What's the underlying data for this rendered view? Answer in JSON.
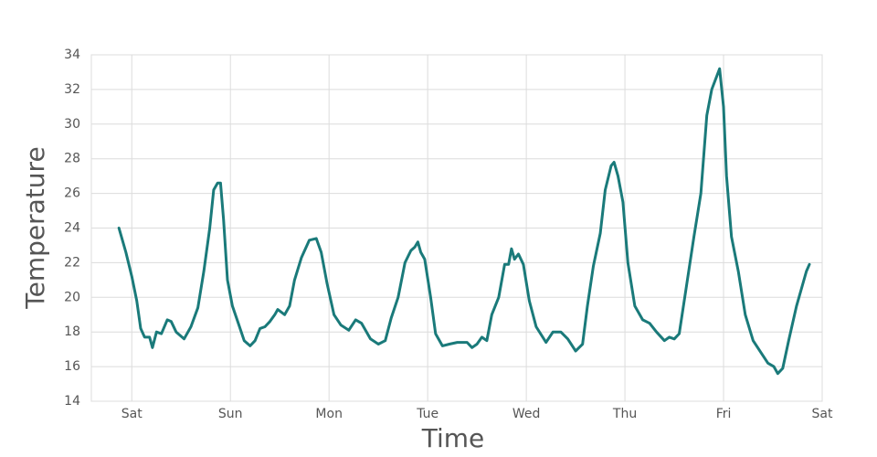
{
  "chart_data": {
    "type": "line",
    "x_label": "Time",
    "y_label": "Temperature",
    "color": "#1a7a7a",
    "grid": true,
    "xlim": [
      -0.41,
      7
    ],
    "ylim": [
      14,
      34
    ],
    "xticks": [
      {
        "value": 0,
        "label": "Sat"
      },
      {
        "value": 1,
        "label": "Sun"
      },
      {
        "value": 2,
        "label": "Mon"
      },
      {
        "value": 3,
        "label": "Tue"
      },
      {
        "value": 4,
        "label": "Wed"
      },
      {
        "value": 5,
        "label": "Thu"
      },
      {
        "value": 6,
        "label": "Fri"
      },
      {
        "value": 7,
        "label": "Sat"
      }
    ],
    "yticks": [
      14,
      16,
      18,
      20,
      22,
      24,
      26,
      28,
      30,
      32,
      34
    ],
    "x": [
      -0.13,
      -0.06,
      0.0,
      0.05,
      0.09,
      0.13,
      0.18,
      0.21,
      0.25,
      0.3,
      0.36,
      0.4,
      0.45,
      0.53,
      0.6,
      0.67,
      0.73,
      0.79,
      0.83,
      0.87,
      0.9,
      0.93,
      0.97,
      1.02,
      1.08,
      1.14,
      1.2,
      1.25,
      1.3,
      1.35,
      1.4,
      1.45,
      1.48,
      1.55,
      1.6,
      1.65,
      1.72,
      1.8,
      1.87,
      1.92,
      1.98,
      2.05,
      2.12,
      2.2,
      2.27,
      2.33,
      2.42,
      2.5,
      2.57,
      2.63,
      2.7,
      2.77,
      2.83,
      2.87,
      2.9,
      2.93,
      2.97,
      3.03,
      3.08,
      3.15,
      3.22,
      3.3,
      3.4,
      3.45,
      3.5,
      3.55,
      3.6,
      3.65,
      3.72,
      3.78,
      3.82,
      3.85,
      3.88,
      3.92,
      3.97,
      4.03,
      4.1,
      4.2,
      4.27,
      4.35,
      4.42,
      4.5,
      4.57,
      4.62,
      4.68,
      4.75,
      4.8,
      4.86,
      4.89,
      4.93,
      4.98,
      5.03,
      5.1,
      5.18,
      5.25,
      5.32,
      5.4,
      5.45,
      5.5,
      5.55,
      5.62,
      5.7,
      5.77,
      5.83,
      5.88,
      5.96,
      6.0,
      6.03,
      6.08,
      6.15,
      6.22,
      6.3,
      6.38,
      6.45,
      6.51,
      6.55,
      6.6,
      6.66,
      6.74,
      6.8,
      6.84,
      6.87
    ],
    "values": [
      24.0,
      22.6,
      21.2,
      19.8,
      18.2,
      17.7,
      17.7,
      17.1,
      18.0,
      17.9,
      18.7,
      18.6,
      18.0,
      17.6,
      18.3,
      19.4,
      21.5,
      24.0,
      26.2,
      26.6,
      26.6,
      24.5,
      21.0,
      19.5,
      18.5,
      17.5,
      17.2,
      17.5,
      18.2,
      18.3,
      18.6,
      19.0,
      19.3,
      19.0,
      19.5,
      21.0,
      22.3,
      23.3,
      23.4,
      22.6,
      20.8,
      19.0,
      18.4,
      18.1,
      18.7,
      18.5,
      17.6,
      17.3,
      17.5,
      18.8,
      20.0,
      22.0,
      22.7,
      22.9,
      23.2,
      22.6,
      22.2,
      20.0,
      17.9,
      17.2,
      17.3,
      17.4,
      17.4,
      17.1,
      17.3,
      17.7,
      17.5,
      19.0,
      20.0,
      21.9,
      21.9,
      22.8,
      22.2,
      22.5,
      21.9,
      19.8,
      18.3,
      17.4,
      18.0,
      18.0,
      17.6,
      16.9,
      17.3,
      19.5,
      21.8,
      23.7,
      26.2,
      27.6,
      27.8,
      27.0,
      25.5,
      22.0,
      19.5,
      18.7,
      18.5,
      18.0,
      17.5,
      17.7,
      17.6,
      17.9,
      20.5,
      23.5,
      26.0,
      30.5,
      32.0,
      33.2,
      31.0,
      27.0,
      23.5,
      21.5,
      19.0,
      17.5,
      16.8,
      16.2,
      16.0,
      15.6,
      15.9,
      17.5,
      19.5,
      20.7,
      21.5,
      21.9
    ]
  }
}
